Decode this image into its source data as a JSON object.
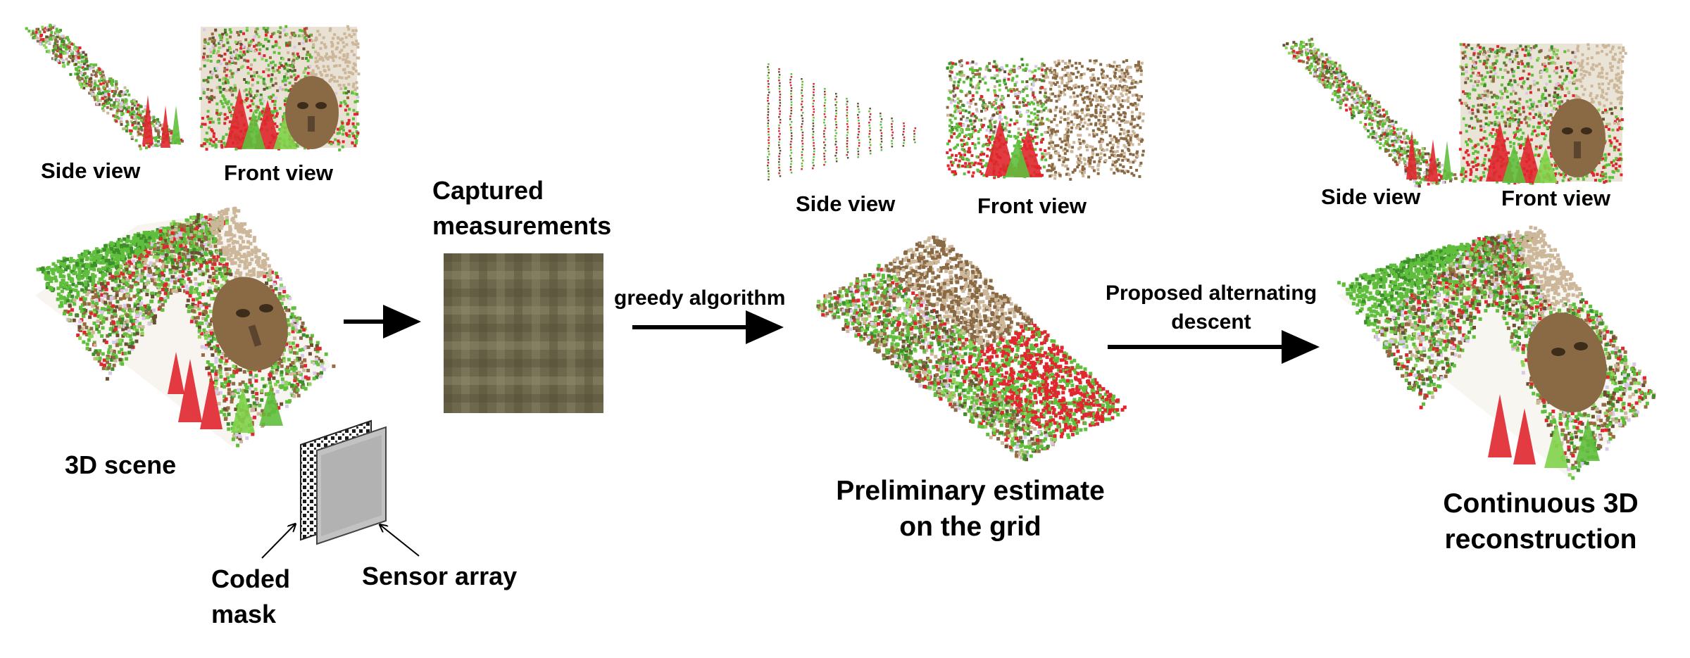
{
  "stages": {
    "scene": {
      "side_view_label": "Side view",
      "front_view_label": "Front view",
      "title": "3D scene"
    },
    "hardware": {
      "mask_label_line1": "Coded",
      "mask_label_line2": "mask",
      "sensor_label": "Sensor array"
    },
    "measurements": {
      "title_line1": "Captured",
      "title_line2": "measurements"
    },
    "preliminary": {
      "side_view_label": "Side view",
      "front_view_label": "Front view",
      "title_line1": "Preliminary estimate",
      "title_line2": "on the grid"
    },
    "reconstruction": {
      "side_view_label": "Side view",
      "front_view_label": "Front view",
      "title_line1": "Continuous 3D",
      "title_line2": "reconstruction"
    }
  },
  "arrows": {
    "greedy_label": "greedy algorithm",
    "descent_label_line1": "Proposed alternating",
    "descent_label_line2": "descent"
  },
  "colors": {
    "foliage_green": "#5fbf3c",
    "pine_red": "#e0262e",
    "mask_brown": "#8a6a44",
    "lattice_tan": "#cdb79a",
    "measurement_olive": "#6f6a4e",
    "sensor_gray": "#b9b9b9"
  }
}
